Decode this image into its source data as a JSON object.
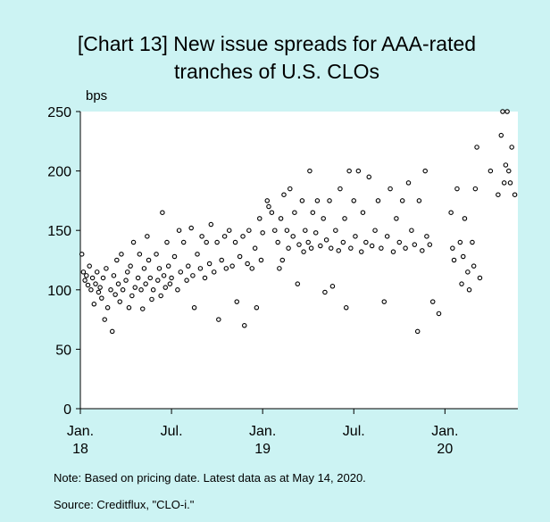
{
  "chart_data": {
    "type": "scatter",
    "title": "[Chart 13] New issue spreads for AAA-rated tranches of U.S. CLOs",
    "y_unit": "bps",
    "note": "Note: Based on pricing date. Latest data as at May 14, 2020.",
    "source": "Source: Creditflux, \"CLO-i.\"",
    "xlim": [
      0,
      28.8
    ],
    "xticks": [
      {
        "value": 0,
        "label": "Jan.\n18"
      },
      {
        "value": 6,
        "label": "Jul."
      },
      {
        "value": 12,
        "label": "Jan.\n19"
      },
      {
        "value": 18,
        "label": "Jul."
      },
      {
        "value": 24,
        "label": "Jan.\n20"
      }
    ],
    "ylim": [
      0,
      250
    ],
    "yticks": [
      0,
      50,
      100,
      150,
      200,
      250
    ],
    "grid": false,
    "color": "#000000",
    "x": [
      0.1,
      0.2,
      0.3,
      0.4,
      0.5,
      0.6,
      0.7,
      0.8,
      0.9,
      1.0,
      1.1,
      1.2,
      1.3,
      1.4,
      1.5,
      1.6,
      1.7,
      1.8,
      2.0,
      2.1,
      2.2,
      2.3,
      2.4,
      2.5,
      2.6,
      2.7,
      2.8,
      3.0,
      3.1,
      3.2,
      3.3,
      3.4,
      3.5,
      3.6,
      3.8,
      3.9,
      4.0,
      4.1,
      4.2,
      4.3,
      4.4,
      4.5,
      4.6,
      4.7,
      4.8,
      5.0,
      5.1,
      5.2,
      5.3,
      5.4,
      5.5,
      5.6,
      5.7,
      5.8,
      5.9,
      6.0,
      6.2,
      6.4,
      6.5,
      6.6,
      6.8,
      7.0,
      7.1,
      7.3,
      7.4,
      7.5,
      7.7,
      7.9,
      8.0,
      8.2,
      8.3,
      8.5,
      8.6,
      8.8,
      9.0,
      9.1,
      9.3,
      9.5,
      9.6,
      9.8,
      10.0,
      10.2,
      10.3,
      10.5,
      10.7,
      10.8,
      11.0,
      11.1,
      11.3,
      11.5,
      11.6,
      11.8,
      11.9,
      12.0,
      12.3,
      12.4,
      12.6,
      12.8,
      13.0,
      13.1,
      13.2,
      13.3,
      13.4,
      13.6,
      13.7,
      13.8,
      14.0,
      14.1,
      14.3,
      14.4,
      14.6,
      14.7,
      14.8,
      15.0,
      15.1,
      15.2,
      15.3,
      15.5,
      15.6,
      15.8,
      16.0,
      16.1,
      16.2,
      16.4,
      16.5,
      16.6,
      16.8,
      17.0,
      17.1,
      17.3,
      17.4,
      17.5,
      17.7,
      17.8,
      18.0,
      18.1,
      18.3,
      18.5,
      18.6,
      18.8,
      19.0,
      19.2,
      19.4,
      19.6,
      19.8,
      20.0,
      20.2,
      20.4,
      20.6,
      20.8,
      21.0,
      21.2,
      21.4,
      21.6,
      21.8,
      22.0,
      22.2,
      22.3,
      22.5,
      22.7,
      22.8,
      23.0,
      23.2,
      23.6,
      24.4,
      24.5,
      24.6,
      24.8,
      25.0,
      25.1,
      25.2,
      25.3,
      25.5,
      25.6,
      25.8,
      25.9,
      26.0,
      26.1,
      26.3,
      27.0,
      27.5,
      27.7,
      27.8,
      27.9,
      28.0,
      28.1,
      28.2,
      28.3,
      28.4,
      28.6
    ],
    "values": [
      130,
      115,
      108,
      112,
      104,
      120,
      100,
      110,
      88,
      105,
      115,
      98,
      102,
      93,
      110,
      75,
      118,
      85,
      100,
      65,
      112,
      96,
      125,
      105,
      90,
      130,
      100,
      108,
      115,
      85,
      120,
      95,
      140,
      102,
      110,
      130,
      100,
      84,
      118,
      105,
      145,
      125,
      110,
      92,
      100,
      130,
      108,
      118,
      95,
      165,
      112,
      102,
      140,
      120,
      105,
      110,
      128,
      100,
      150,
      115,
      140,
      108,
      120,
      152,
      112,
      85,
      130,
      118,
      145,
      110,
      140,
      122,
      155,
      115,
      140,
      75,
      125,
      145,
      118,
      150,
      120,
      140,
      90,
      128,
      145,
      70,
      122,
      150,
      118,
      135,
      85,
      160,
      125,
      148,
      175,
      170,
      165,
      150,
      140,
      118,
      160,
      125,
      180,
      150,
      135,
      185,
      145,
      165,
      105,
      138,
      175,
      132,
      150,
      140,
      200,
      135,
      165,
      148,
      175,
      137,
      160,
      98,
      142,
      175,
      135,
      103,
      150,
      133,
      185,
      140,
      160,
      85,
      200,
      135,
      175,
      145,
      200,
      132,
      165,
      140,
      195,
      137,
      150,
      175,
      135,
      90,
      145,
      185,
      132,
      160,
      140,
      175,
      135,
      190,
      150,
      138,
      65,
      175,
      133,
      200,
      145,
      138,
      90,
      80,
      165,
      135,
      125,
      185,
      140,
      105,
      128,
      160,
      115,
      100,
      140,
      120,
      185,
      220,
      110,
      200,
      180,
      230,
      250,
      190,
      205,
      250,
      200,
      190,
      220,
      180
    ]
  }
}
